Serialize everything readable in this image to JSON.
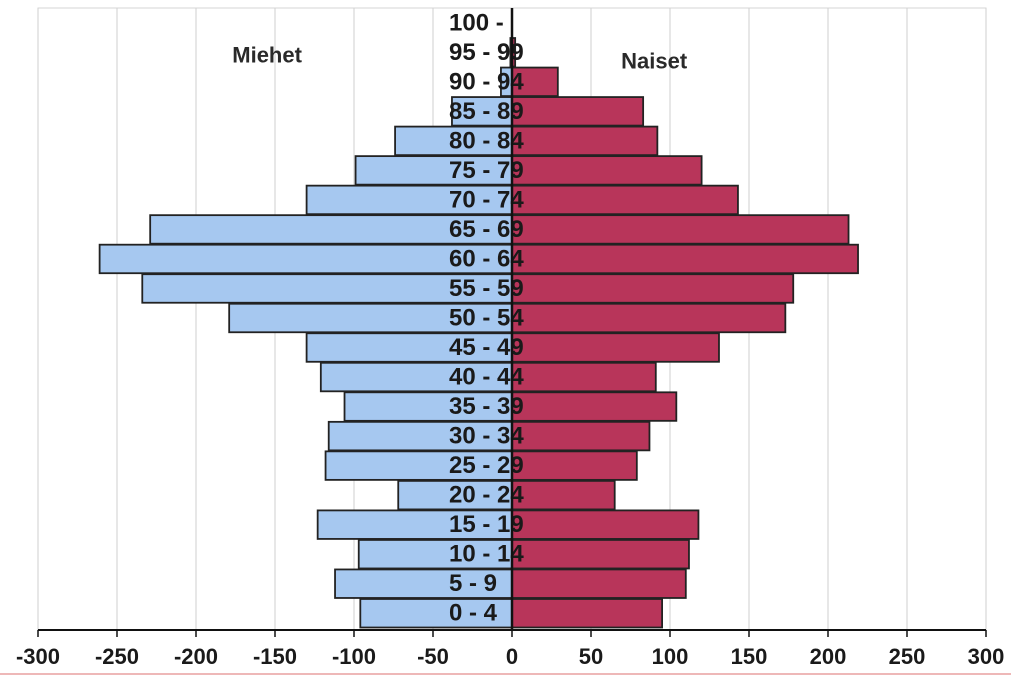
{
  "chart_data": {
    "type": "bar",
    "orientation": "horizontal",
    "layout": "population-pyramid",
    "categories": [
      "0 - 4",
      "5 - 9",
      "10 - 14",
      "15 - 19",
      "20 - 24",
      "25 - 29",
      "30 - 34",
      "35 - 39",
      "40 - 44",
      "45 - 49",
      "50 - 54",
      "55 - 59",
      "60 - 64",
      "65 - 69",
      "70 - 74",
      "75 - 79",
      "80 - 84",
      "85 - 89",
      "90 - 94",
      "95 - 99",
      "100 -"
    ],
    "series": [
      {
        "name": "Miehet",
        "color": "#a6c8f0",
        "values": [
          -96,
          -112,
          -97,
          -123,
          -72,
          -118,
          -116,
          -106,
          -121,
          -130,
          -179,
          -234,
          -261,
          -229,
          -130,
          -99,
          -74,
          -38,
          -7,
          -1,
          0
        ]
      },
      {
        "name": "Naiset",
        "color": "#b8355a",
        "values": [
          95,
          110,
          112,
          118,
          65,
          79,
          87,
          104,
          91,
          131,
          173,
          178,
          219,
          213,
          143,
          120,
          92,
          83,
          29,
          2,
          0
        ]
      }
    ],
    "xlim": [
      -300,
      300
    ],
    "xticks": [
      -300,
      -250,
      -200,
      -150,
      -100,
      -50,
      0,
      50,
      100,
      150,
      200,
      250,
      300
    ],
    "grid": true,
    "title": "",
    "xlabel": "",
    "ylabel": "",
    "category_labels_position": "center"
  }
}
